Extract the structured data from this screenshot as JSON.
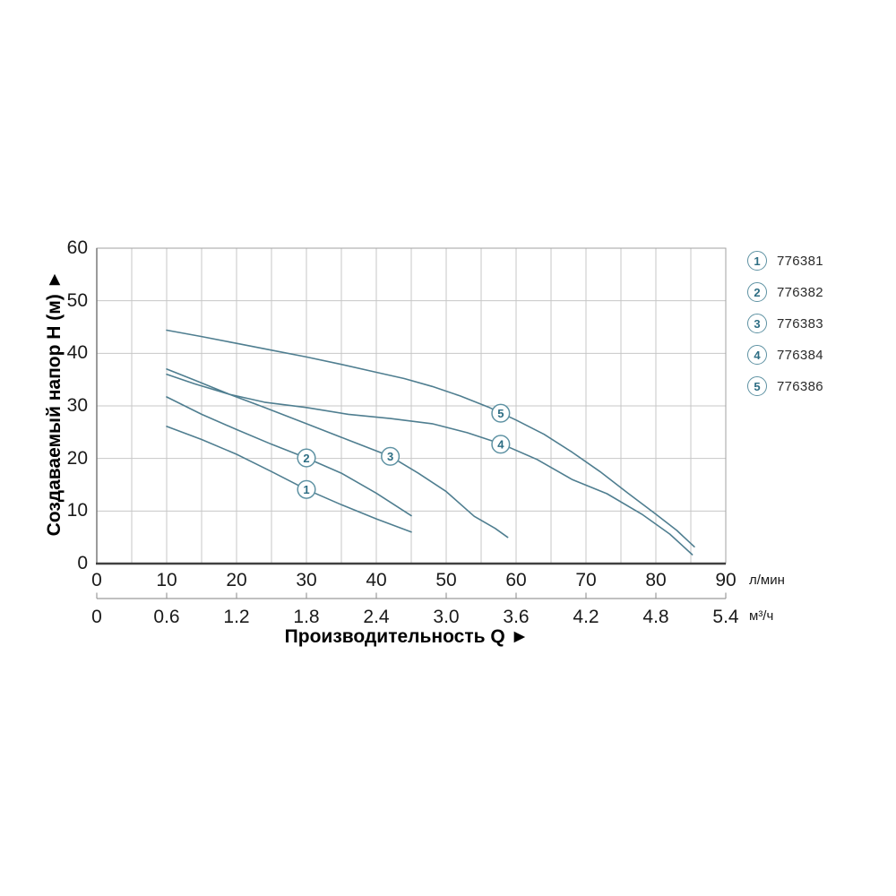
{
  "chart_data": {
    "type": "line",
    "title": "",
    "xlabel": "Производительность Q ►",
    "ylabel": "Создаваемый напор H (м) ►",
    "grid": true,
    "legend_position": "right-top",
    "y_axis": {
      "ticks": [
        0,
        10,
        20,
        30,
        40,
        50,
        60
      ],
      "range": [
        0,
        60
      ],
      "grid_step": 10
    },
    "x_axis_lmin": {
      "unit": "л/мин",
      "ticks": [
        0,
        10,
        20,
        30,
        40,
        50,
        60,
        70,
        80,
        90
      ],
      "range": [
        0,
        90
      ],
      "minor_grid_step": 5
    },
    "x_axis_m3h": {
      "unit": "м³/ч",
      "ticks": [
        "0",
        "0.6",
        "1.2",
        "1.8",
        "2.4",
        "3.0",
        "3.6",
        "4.2",
        "4.8",
        "5.4"
      ],
      "range": [
        0,
        5.4
      ]
    },
    "series": [
      {
        "label": "1",
        "code": "776381",
        "label_pos": [
          30,
          14.1
        ],
        "points": [
          [
            10,
            26.1
          ],
          [
            15,
            23.6
          ],
          [
            20,
            20.8
          ],
          [
            25,
            17.5
          ],
          [
            30,
            14.1
          ],
          [
            35,
            11.2
          ],
          [
            40,
            8.5
          ],
          [
            45,
            6.0
          ]
        ]
      },
      {
        "label": "2",
        "code": "776382",
        "label_pos": [
          30,
          20.1
        ],
        "points": [
          [
            10,
            31.7
          ],
          [
            15,
            28.4
          ],
          [
            20,
            25.5
          ],
          [
            25,
            22.7
          ],
          [
            30,
            20.1
          ],
          [
            35,
            17.2
          ],
          [
            40,
            13.4
          ],
          [
            45,
            9.1
          ]
        ]
      },
      {
        "label": "3",
        "code": "776383",
        "label_pos": [
          42,
          20.4
        ],
        "points": [
          [
            10,
            37.0
          ],
          [
            14,
            34.9
          ],
          [
            19,
            32.2
          ],
          [
            24,
            29.7
          ],
          [
            30,
            26.6
          ],
          [
            36,
            23.5
          ],
          [
            42,
            20.4
          ],
          [
            46,
            17.2
          ],
          [
            50,
            13.7
          ],
          [
            54,
            9.0
          ],
          [
            57,
            6.7
          ],
          [
            58.8,
            5.0
          ]
        ]
      },
      {
        "label": "4",
        "code": "776384",
        "label_pos": [
          57.8,
          22.7
        ],
        "points": [
          [
            10,
            36.0
          ],
          [
            14,
            34.2
          ],
          [
            19,
            32.2
          ],
          [
            24,
            30.7
          ],
          [
            30,
            29.7
          ],
          [
            36,
            28.4
          ],
          [
            42,
            27.6
          ],
          [
            48,
            26.6
          ],
          [
            53,
            24.9
          ],
          [
            58,
            22.7
          ],
          [
            63,
            19.8
          ],
          [
            68,
            16.0
          ],
          [
            73,
            13.3
          ],
          [
            78,
            9.4
          ],
          [
            82,
            5.6
          ],
          [
            85.2,
            1.7
          ]
        ]
      },
      {
        "label": "5",
        "code": "776386",
        "label_pos": [
          57.8,
          28.6
        ],
        "points": [
          [
            10,
            44.4
          ],
          [
            15,
            43.2
          ],
          [
            20,
            41.9
          ],
          [
            25,
            40.6
          ],
          [
            30,
            39.3
          ],
          [
            35,
            37.9
          ],
          [
            40,
            36.4
          ],
          [
            44,
            35.2
          ],
          [
            48,
            33.7
          ],
          [
            52,
            31.9
          ],
          [
            56,
            29.8
          ],
          [
            60,
            27.3
          ],
          [
            64,
            24.6
          ],
          [
            68,
            21.2
          ],
          [
            72,
            17.5
          ],
          [
            76,
            13.4
          ],
          [
            80,
            9.4
          ],
          [
            83,
            6.3
          ],
          [
            85.5,
            3.2
          ]
        ]
      }
    ]
  },
  "legend": {
    "items": [
      {
        "num": "1",
        "code": "776381"
      },
      {
        "num": "2",
        "code": "776382"
      },
      {
        "num": "3",
        "code": "776383"
      },
      {
        "num": "4",
        "code": "776384"
      },
      {
        "num": "5",
        "code": "776386"
      }
    ]
  },
  "colors": {
    "curve": "#4f7e90",
    "curve_circle_stroke": "#5e92a3",
    "curve_circle_text": "#2e6e84",
    "grid": "#c7c7c7",
    "plot_border": "#a2a2a2",
    "axis_bottom": "#404040",
    "axis_left": "#7a7a7a",
    "m3h_line": "#9b9b9b",
    "tick_text": "#1a1a1a",
    "legend_text": "#2b2b2b"
  }
}
